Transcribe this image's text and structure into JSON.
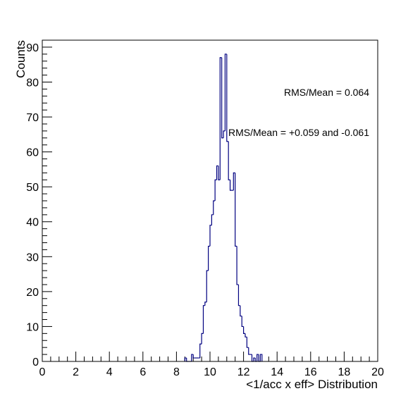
{
  "chart_data": {
    "type": "histogram",
    "title": "",
    "xlabel": "<1/acc x eff> Distribution",
    "ylabel": "Counts",
    "xlim": [
      0,
      20
    ],
    "ylim": [
      0,
      92
    ],
    "x_ticks": [
      "0",
      "2",
      "4",
      "6",
      "8",
      "10",
      "12",
      "14",
      "16",
      "18",
      "20"
    ],
    "y_ticks": [
      "0",
      "10",
      "20",
      "30",
      "40",
      "50",
      "60",
      "70",
      "80",
      "90"
    ],
    "bin_width": 0.1,
    "line_color": "#000080",
    "grid": false,
    "bins": [
      {
        "x": 8.5,
        "y": 1
      },
      {
        "x": 8.6,
        "y": 0
      },
      {
        "x": 8.7,
        "y": 0
      },
      {
        "x": 8.8,
        "y": 0
      },
      {
        "x": 8.9,
        "y": 2
      },
      {
        "x": 9.0,
        "y": 1
      },
      {
        "x": 9.1,
        "y": 1
      },
      {
        "x": 9.2,
        "y": 1
      },
      {
        "x": 9.3,
        "y": 1
      },
      {
        "x": 9.4,
        "y": 5
      },
      {
        "x": 9.5,
        "y": 8
      },
      {
        "x": 9.6,
        "y": 16
      },
      {
        "x": 9.7,
        "y": 17
      },
      {
        "x": 9.8,
        "y": 26
      },
      {
        "x": 9.9,
        "y": 33
      },
      {
        "x": 10.0,
        "y": 39
      },
      {
        "x": 10.1,
        "y": 42
      },
      {
        "x": 10.2,
        "y": 46
      },
      {
        "x": 10.3,
        "y": 52
      },
      {
        "x": 10.4,
        "y": 56
      },
      {
        "x": 10.5,
        "y": 52
      },
      {
        "x": 10.6,
        "y": 87
      },
      {
        "x": 10.7,
        "y": 64
      },
      {
        "x": 10.8,
        "y": 66
      },
      {
        "x": 10.9,
        "y": 88
      },
      {
        "x": 11.0,
        "y": 63
      },
      {
        "x": 11.1,
        "y": 52
      },
      {
        "x": 11.2,
        "y": 49
      },
      {
        "x": 11.3,
        "y": 49
      },
      {
        "x": 11.4,
        "y": 54
      },
      {
        "x": 11.5,
        "y": 33
      },
      {
        "x": 11.6,
        "y": 22
      },
      {
        "x": 11.7,
        "y": 16
      },
      {
        "x": 11.8,
        "y": 13
      },
      {
        "x": 11.9,
        "y": 10
      },
      {
        "x": 12.0,
        "y": 8
      },
      {
        "x": 12.1,
        "y": 7
      },
      {
        "x": 12.2,
        "y": 4
      },
      {
        "x": 12.3,
        "y": 2
      },
      {
        "x": 12.4,
        "y": 2
      },
      {
        "x": 12.5,
        "y": 0
      },
      {
        "x": 12.6,
        "y": 1
      },
      {
        "x": 12.7,
        "y": 0
      },
      {
        "x": 12.8,
        "y": 2
      },
      {
        "x": 12.9,
        "y": 0
      },
      {
        "x": 13.0,
        "y": 2
      }
    ],
    "annotations": [
      {
        "text": "RMS/Mean = 0.064"
      },
      {
        "text": "RMS/Mean = +0.059 and -0.061"
      }
    ]
  }
}
